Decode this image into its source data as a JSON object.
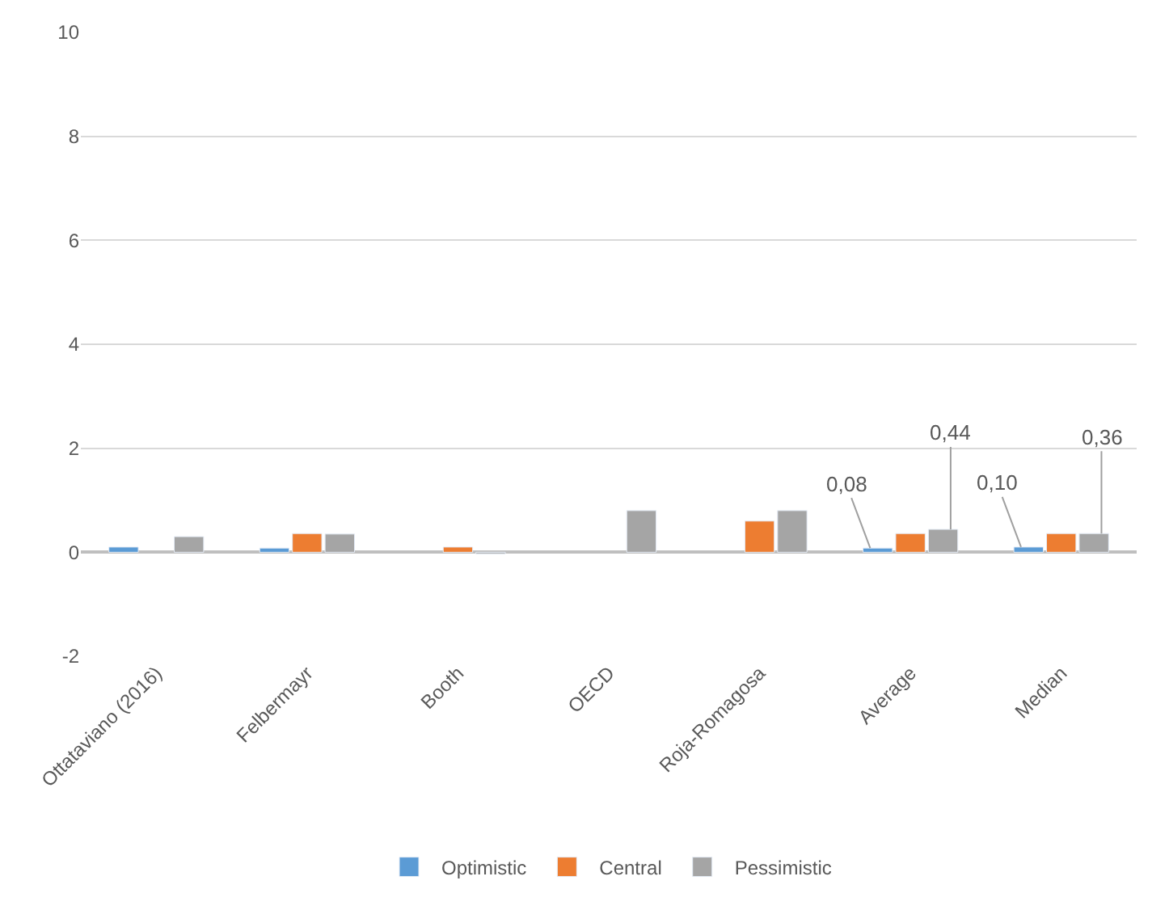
{
  "chart_data": {
    "type": "bar",
    "categories": [
      "Ottataviano (2016)",
      "Felbermayr",
      "Booth",
      "OECD",
      "Roja-Romagosa",
      "Average",
      "Median"
    ],
    "series": [
      {
        "name": "Optimistic",
        "color": "#5b9bd5",
        "values": [
          0.1,
          0.08,
          null,
          null,
          null,
          0.08,
          0.1
        ],
        "value_labels": [
          null,
          null,
          null,
          null,
          null,
          "0,08",
          "0,10"
        ]
      },
      {
        "name": "Central",
        "color": "#ed7d31",
        "values": [
          null,
          0.36,
          0.1,
          null,
          0.6,
          0.36,
          0.36
        ]
      },
      {
        "name": "Pessimistic",
        "color": "#a5a5a5",
        "values": [
          0.3,
          0.35,
          -0.03,
          0.8,
          0.8,
          0.44,
          0.36
        ],
        "value_labels": [
          null,
          null,
          null,
          null,
          null,
          "0,44",
          "0,36"
        ]
      }
    ],
    "ylim": [
      -2,
      10
    ],
    "yticks": [
      {
        "value": -2,
        "label": "-2"
      },
      0,
      2,
      4,
      6,
      8,
      10
    ],
    "grid": "y",
    "legend": "bottom"
  }
}
